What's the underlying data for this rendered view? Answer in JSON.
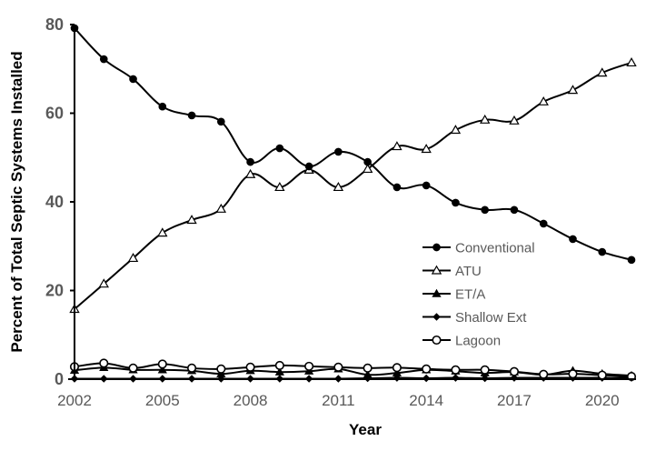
{
  "chart_data": {
    "type": "line",
    "title": "",
    "xlabel": "Year",
    "ylabel": "Percent of Total Septic Systems Installed",
    "x": [
      2002,
      2003,
      2004,
      2005,
      2006,
      2007,
      2008,
      2009,
      2010,
      2011,
      2012,
      2013,
      2014,
      2015,
      2016,
      2017,
      2018,
      2019,
      2020,
      2021
    ],
    "xticks": [
      2002,
      2005,
      2008,
      2011,
      2014,
      2017,
      2020
    ],
    "yticks": [
      0,
      20,
      40,
      60,
      80
    ],
    "ylim": [
      0,
      80
    ],
    "xlim": [
      2002,
      2021
    ],
    "grid": false,
    "legend_position": "center-right",
    "series": [
      {
        "name": "Conventional",
        "marker": "filled-circle",
        "values": [
          79.2,
          72.2,
          67.7,
          61.5,
          59.5,
          58.1,
          49.0,
          52.1,
          48.0,
          51.3,
          49.0,
          43.3,
          43.7,
          39.8,
          38.2,
          38.2,
          35.1,
          31.6,
          28.7,
          26.9
        ]
      },
      {
        "name": "ATU",
        "marker": "open-triangle",
        "values": [
          15.8,
          21.5,
          27.3,
          33.0,
          35.9,
          38.4,
          46.2,
          43.3,
          47.2,
          43.3,
          47.4,
          52.5,
          51.9,
          56.2,
          58.5,
          58.3,
          62.6,
          65.2,
          69.1,
          71.4
        ]
      },
      {
        "name": "ET/A",
        "marker": "filled-triangle",
        "values": [
          2.0,
          2.6,
          2.1,
          2.1,
          1.9,
          1.2,
          1.9,
          1.6,
          1.8,
          2.3,
          1.0,
          1.4,
          2.1,
          1.8,
          1.4,
          1.6,
          1.0,
          1.9,
          1.2,
          0.8
        ]
      },
      {
        "name": "Shallow Ext",
        "marker": "filled-diamond",
        "values": [
          0.1,
          0.1,
          0.1,
          0.1,
          0.1,
          0.1,
          0.1,
          0.1,
          0.1,
          0.1,
          0.2,
          0.3,
          0.2,
          0.3,
          0.2,
          0.3,
          0.3,
          0.3,
          0.3,
          0.3
        ]
      },
      {
        "name": "Lagoon",
        "marker": "open-circle",
        "values": [
          2.8,
          3.6,
          2.5,
          3.4,
          2.5,
          2.3,
          2.7,
          3.1,
          2.9,
          2.7,
          2.5,
          2.6,
          2.3,
          2.1,
          2.1,
          1.7,
          1.1,
          1.2,
          0.9,
          0.6
        ]
      }
    ]
  },
  "legend": {
    "items": [
      {
        "label": "Conventional",
        "marker": "filled-circle"
      },
      {
        "label": "ATU",
        "marker": "open-triangle"
      },
      {
        "label": "ET/A",
        "marker": "filled-triangle"
      },
      {
        "label": "Shallow Ext",
        "marker": "filled-diamond"
      },
      {
        "label": "Lagoon",
        "marker": "open-circle"
      }
    ]
  },
  "colors": {
    "line": "#000000",
    "tick_text": "#595959",
    "axis_title": "#000000",
    "background": "#ffffff"
  }
}
